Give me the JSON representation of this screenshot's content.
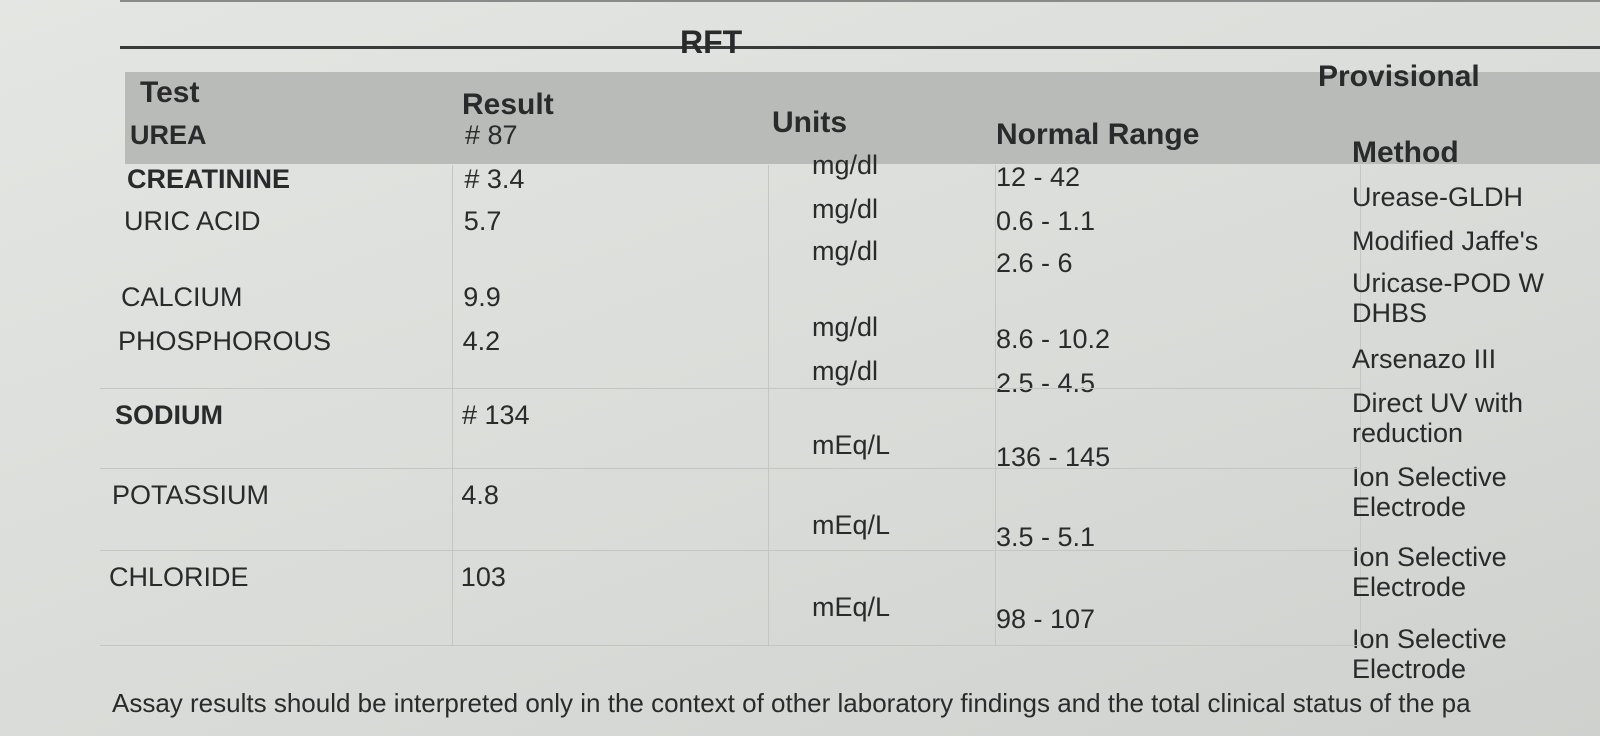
{
  "header": {
    "title": "RFT",
    "status": "Provisional"
  },
  "table": {
    "columns": [
      "Test",
      "Result",
      "Units",
      "Normal Range",
      "Method"
    ],
    "rows": [
      [
        "UREA",
        "# 87",
        "mg/dl",
        "12 - 42",
        "Urease-GLDH"
      ],
      [
        "CREATININE",
        "# 3.4",
        "mg/dl",
        "0.6 - 1.1",
        "Modified Jaffe's"
      ],
      [
        "URIC ACID",
        "5.7",
        "mg/dl",
        "2.6 - 6",
        "Uricase-POD W DHBS"
      ],
      [
        "CALCIUM",
        "9.9",
        "mg/dl",
        "8.6 - 10.2",
        "Arsenazo III"
      ],
      [
        "PHOSPHOROUS",
        "4.2",
        "mg/dl",
        "2.5 - 4.5",
        "Direct UV with reduction"
      ],
      [
        "SODIUM",
        "# 134",
        "mEq/L",
        "136 - 145",
        "Ion Selective Electrode"
      ],
      [
        "POTASSIUM",
        "4.8",
        "mEq/L",
        "3.5 - 5.1",
        "Ion Selective Electrode"
      ],
      [
        "CHLORIDE",
        "103",
        "mEq/L",
        "98 - 107",
        "Ion Selective Electrode"
      ]
    ]
  },
  "footer": {
    "note": "Assay results should be interpreted only in the context of other laboratory findings and the total clinical status of the pa"
  }
}
